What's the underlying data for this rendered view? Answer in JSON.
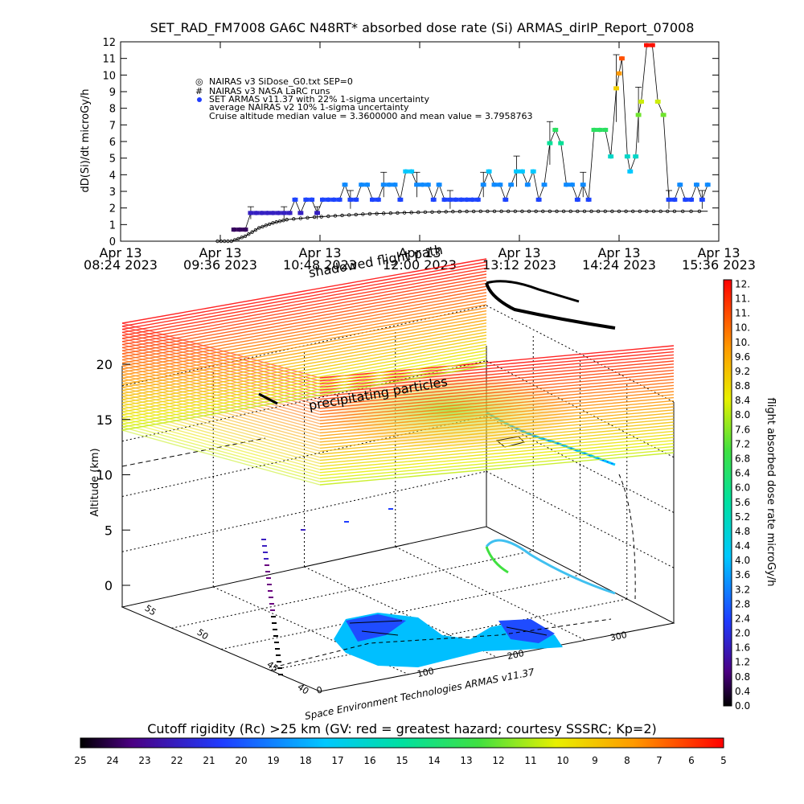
{
  "header": {
    "title": "SET_RAD_FM7008  GA6C N48RT* absorbed dose rate (Si) ARMAS_dirIP_Report_07008"
  },
  "top_plot": {
    "ylabel": "dD(Si)/dt microGy/h",
    "legend": [
      "NAIRAS v3 SiDose_G0.txt SEP=0",
      "NAIRAS v3 NASA LaRC runs",
      "SET ARMAS v11.37 with 22% 1-sigma uncertainty",
      "average NAIRAS v2 10% 1-sigma uncertainty",
      "Cruise altitude median value = 3.3600000 and mean value = 3.7958763"
    ],
    "legend_markers": [
      "◎",
      "#",
      "●",
      "",
      ""
    ]
  },
  "scene3d": {
    "shadow_label": "shadowed flight path",
    "precip_label": "precipitating particles",
    "altitude_label": "Altitude (km)",
    "alt_ticks": [
      "0",
      "5",
      "10",
      "15",
      "20"
    ],
    "lat_ticks": [
      "40",
      "45",
      "50",
      "55"
    ],
    "lon_ticks": [
      "0",
      "100",
      "200",
      "300"
    ],
    "credit": "Space Environment Technologies ARMAS v11.37"
  },
  "right_colorbar": {
    "label": "flight absorbed dose rate microGy/h",
    "ticks": [
      "0.0",
      "0.4",
      "0.8",
      "1.2",
      "1.6",
      "2.0",
      "2.4",
      "2.8",
      "3.2",
      "3.6",
      "4.0",
      "4.4",
      "4.8",
      "5.2",
      "5.6",
      "6.0",
      "6.4",
      "6.8",
      "7.2",
      "7.6",
      "8.0",
      "8.4",
      "8.8",
      "9.2",
      "9.6",
      "10.",
      "10.",
      "11.",
      "11.",
      "12."
    ]
  },
  "bottom_colorbar": {
    "label": "Cutoff rigidity (Rc) >25 km (GV: red = greatest hazard; courtesy SSSRC; Kp=2)",
    "ticks": [
      "25",
      "24",
      "23",
      "22",
      "21",
      "20",
      "19",
      "18",
      "17",
      "16",
      "15",
      "14",
      "13",
      "12",
      "11",
      "10",
      "9",
      "8",
      "7",
      "6",
      "5"
    ]
  },
  "colors": {
    "nairas": "#000000",
    "cold": "#000000",
    "hot": "#ff0000"
  },
  "chart_data": [
    {
      "type": "scatter",
      "title": "SET_RAD_FM7008  GA6C N48RT* absorbed dose rate (Si) ARMAS_dirIP_Report_07008",
      "xlabel": "",
      "ylabel": "dD(Si)/dt microGy/h",
      "x_ticks": [
        [
          "Apr 13",
          "08:24 2023"
        ],
        [
          "Apr 13",
          "09:36 2023"
        ],
        [
          "Apr 13",
          "10:48 2023"
        ],
        [
          "Apr 13",
          "12:00 2023"
        ],
        [
          "Apr 13",
          "13:12 2023"
        ],
        [
          "Apr 13",
          "14:24 2023"
        ],
        [
          "Apr 13",
          "15:36 2023"
        ]
      ],
      "x_unit": "minutes after 08:24",
      "xlim": [
        0,
        432
      ],
      "ylim": [
        0,
        12
      ],
      "y_ticks": [
        0,
        1,
        2,
        3,
        4,
        5,
        6,
        7,
        8,
        9,
        10,
        11,
        12
      ],
      "grid": false,
      "series": [
        {
          "name": "SET ARMAS v11.37 with 22% 1-sigma uncertainty",
          "marker": "filled-circle",
          "color_scale": "dose rate rainbow",
          "points": [
            [
              82,
              0.7
            ],
            [
              86,
              0.7
            ],
            [
              90,
              0.7
            ],
            [
              94,
              1.7
            ],
            [
              98,
              1.7
            ],
            [
              102,
              1.7
            ],
            [
              106,
              1.7
            ],
            [
              110,
              1.7
            ],
            [
              114,
              1.7
            ],
            [
              118,
              1.7
            ],
            [
              122,
              1.7
            ],
            [
              126,
              2.5
            ],
            [
              130,
              1.7
            ],
            [
              134,
              2.5
            ],
            [
              138,
              2.5
            ],
            [
              142,
              1.7
            ],
            [
              146,
              2.5
            ],
            [
              150,
              2.5
            ],
            [
              154,
              2.5
            ],
            [
              158,
              2.5
            ],
            [
              162,
              3.4
            ],
            [
              166,
              2.5
            ],
            [
              170,
              2.5
            ],
            [
              174,
              3.4
            ],
            [
              178,
              3.4
            ],
            [
              182,
              2.5
            ],
            [
              186,
              2.5
            ],
            [
              190,
              3.4
            ],
            [
              194,
              3.4
            ],
            [
              198,
              3.4
            ],
            [
              202,
              2.5
            ],
            [
              206,
              4.2
            ],
            [
              210,
              4.2
            ],
            [
              214,
              3.4
            ],
            [
              218,
              3.4
            ],
            [
              222,
              3.4
            ],
            [
              226,
              2.5
            ],
            [
              230,
              3.4
            ],
            [
              234,
              2.5
            ],
            [
              238,
              2.5
            ],
            [
              242,
              2.5
            ],
            [
              246,
              2.5
            ],
            [
              250,
              2.5
            ],
            [
              254,
              2.5
            ],
            [
              258,
              2.5
            ],
            [
              262,
              3.4
            ],
            [
              266,
              4.2
            ],
            [
              270,
              3.4
            ],
            [
              274,
              3.4
            ],
            [
              278,
              2.5
            ],
            [
              282,
              3.4
            ],
            [
              286,
              4.2
            ],
            [
              290,
              4.2
            ],
            [
              294,
              3.4
            ],
            [
              298,
              4.2
            ],
            [
              302,
              2.5
            ],
            [
              306,
              3.4
            ],
            [
              310,
              5.9
            ],
            [
              314,
              6.7
            ],
            [
              318,
              5.9
            ],
            [
              322,
              3.4
            ],
            [
              326,
              3.4
            ],
            [
              330,
              2.5
            ],
            [
              334,
              3.4
            ],
            [
              338,
              2.5
            ],
            [
              342,
              6.7
            ],
            [
              346,
              6.7
            ],
            [
              350,
              6.7
            ],
            [
              354,
              5.1
            ],
            [
              358,
              9.2
            ],
            [
              360,
              10.1
            ],
            [
              362,
              11.0
            ],
            [
              366,
              5.1
            ],
            [
              368,
              4.2
            ],
            [
              372,
              5.1
            ],
            [
              374,
              7.6
            ],
            [
              376,
              8.4
            ],
            [
              380,
              11.8
            ],
            [
              384,
              11.8
            ],
            [
              388,
              8.4
            ],
            [
              392,
              7.6
            ],
            [
              396,
              2.5
            ],
            [
              400,
              2.5
            ],
            [
              404,
              3.4
            ],
            [
              408,
              2.5
            ],
            [
              412,
              2.5
            ],
            [
              416,
              3.4
            ],
            [
              420,
              2.5
            ],
            [
              424,
              3.4
            ]
          ]
        },
        {
          "name": "NAIRAS v3 SiDose_G0.txt SEP=0",
          "marker": "open-circle",
          "color": "#000000",
          "points": [
            [
              70,
              0.0
            ],
            [
              80,
              0.0
            ],
            [
              90,
              0.3
            ],
            [
              100,
              0.8
            ],
            [
              110,
              1.1
            ],
            [
              120,
              1.3
            ],
            [
              140,
              1.45
            ],
            [
              160,
              1.55
            ],
            [
              180,
              1.65
            ],
            [
              200,
              1.7
            ],
            [
              220,
              1.75
            ],
            [
              240,
              1.78
            ],
            [
              260,
              1.8
            ],
            [
              280,
              1.8
            ],
            [
              300,
              1.8
            ],
            [
              320,
              1.8
            ],
            [
              340,
              1.8
            ],
            [
              360,
              1.8
            ],
            [
              380,
              1.8
            ],
            [
              400,
              1.8
            ],
            [
              424,
              1.8
            ]
          ]
        }
      ]
    },
    {
      "type": "scatter",
      "xlabel": "",
      "ylabel": "Altitude (km)",
      "zlim": [
        0,
        20
      ],
      "lat_ticks": [
        40,
        45,
        50,
        55
      ],
      "lon_ticks": [
        0,
        100,
        200,
        300
      ],
      "colorbar": {
        "label": "flight absorbed dose rate microGy/h",
        "range": [
          0,
          12
        ]
      },
      "bottom_colorbar": {
        "label": "Cutoff rigidity (Rc) >25 km (GV: red = greatest hazard; courtesy SSSRC; Kp=2)",
        "range": [
          25,
          5
        ]
      }
    }
  ]
}
